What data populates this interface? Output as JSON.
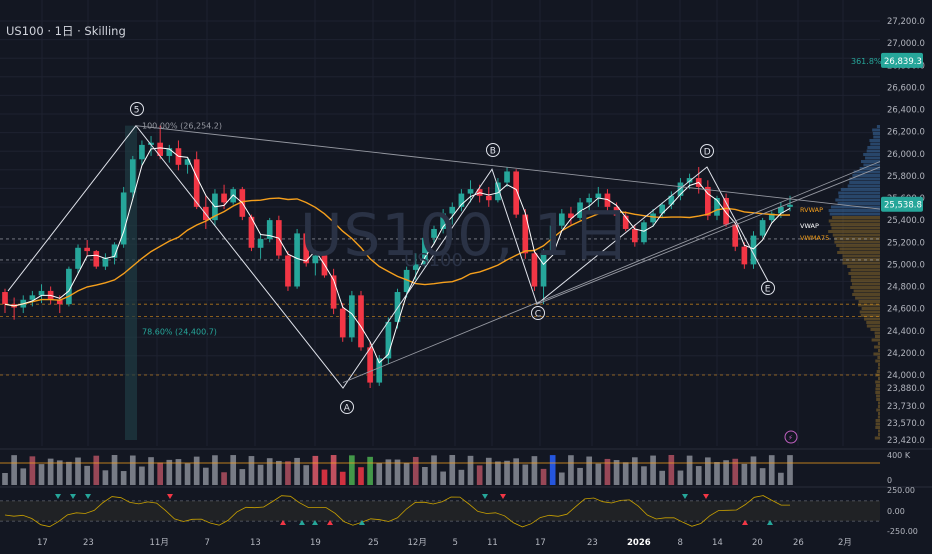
{
  "header": {
    "title": "US100 · 1日 · Skilling"
  },
  "watermark": {
    "symbol": "US100, 1日",
    "sub": "US100"
  },
  "colors": {
    "up": "#26a69a",
    "down": "#f23645",
    "bg": "#131722",
    "grid": "#1e2230",
    "orange": "#f59f1c",
    "accent": "#26a69a"
  },
  "icons": [
    "lightning-icon"
  ],
  "chart_data": [
    {
      "type": "candlestick",
      "title": "US100 · 1日 · Skilling",
      "ylim": [
        23420,
        27300
      ],
      "yticks": [
        "27,200.0",
        "27,000.0",
        "26,800.0",
        "26,600.0",
        "26,400.0",
        "26,200.0",
        "26,000.0",
        "25,800.0",
        "25,600.0",
        "25,400.0",
        "25,200.0",
        "25,000.0",
        "24,800.0",
        "24,600.0",
        "24,400.0",
        "24,200.0",
        "24,000.0",
        "23,880.0",
        "23,730.0",
        "23,570.0",
        "23,420.0"
      ],
      "xticks": [
        "17",
        "23",
        "11月",
        "7",
        "13",
        "19",
        "25",
        "12月",
        "5",
        "11",
        "17",
        "23",
        "2026",
        "8",
        "14",
        "20",
        "26",
        "2月"
      ],
      "current_price": "25,538.8",
      "fib_target": "26,839.3",
      "fib_target_label": "361.8%",
      "fib_top_label": "100.00% (26,254.2)",
      "fib_mid_label": "78.60% (24,400.7)",
      "indicator_labels": [
        "RVWAP",
        "VWAP",
        "VWMA75"
      ],
      "wave_labels": [
        "5",
        "A",
        "B",
        "C",
        "D",
        "E"
      ],
      "ohlc": [
        [
          24750,
          24780,
          24560,
          24640
        ],
        [
          24640,
          24700,
          24500,
          24610
        ],
        [
          24610,
          24720,
          24560,
          24680
        ],
        [
          24680,
          24760,
          24620,
          24720
        ],
        [
          24720,
          24820,
          24650,
          24760
        ],
        [
          24760,
          24800,
          24640,
          24680
        ],
        [
          24680,
          24720,
          24560,
          24640
        ],
        [
          24640,
          24980,
          24620,
          24960
        ],
        [
          24960,
          25180,
          24920,
          25150
        ],
        [
          25150,
          25220,
          25080,
          25120
        ],
        [
          25120,
          25130,
          24960,
          24980
        ],
        [
          24980,
          25100,
          24950,
          25060
        ],
        [
          25060,
          25200,
          25000,
          25180
        ],
        [
          25180,
          25700,
          25150,
          25650
        ],
        [
          25650,
          25980,
          25600,
          25950
        ],
        [
          25950,
          26120,
          25900,
          26080
        ],
        [
          26080,
          26160,
          25980,
          26100
        ],
        [
          26100,
          26254,
          25950,
          25980
        ],
        [
          25980,
          26080,
          25920,
          26050
        ],
        [
          26050,
          26120,
          25850,
          25900
        ],
        [
          25900,
          25960,
          25820,
          25950
        ],
        [
          25950,
          26020,
          25500,
          25520
        ],
        [
          25520,
          25620,
          25320,
          25400
        ],
        [
          25400,
          25680,
          25350,
          25640
        ],
        [
          25640,
          25720,
          25500,
          25560
        ],
        [
          25560,
          25700,
          25540,
          25680
        ],
        [
          25680,
          25700,
          25400,
          25430
        ],
        [
          25430,
          25450,
          25120,
          25150
        ],
        [
          25150,
          25280,
          25050,
          25230
        ],
        [
          25230,
          25420,
          25200,
          25400
        ],
        [
          25400,
          25440,
          25050,
          25080
        ],
        [
          25080,
          25120,
          24760,
          24800
        ],
        [
          24800,
          25320,
          24780,
          25280
        ],
        [
          25280,
          25340,
          24980,
          25010
        ],
        [
          25010,
          25120,
          24900,
          25080
        ],
        [
          25080,
          25100,
          24880,
          24900
        ],
        [
          24900,
          24960,
          24550,
          24600
        ],
        [
          24600,
          24650,
          24300,
          24340
        ],
        [
          24340,
          24760,
          24300,
          24720
        ],
        [
          24720,
          24760,
          24220,
          24250
        ],
        [
          24250,
          24300,
          23880,
          23930
        ],
        [
          23930,
          24180,
          23900,
          24150
        ],
        [
          24150,
          24520,
          24100,
          24480
        ],
        [
          24480,
          24780,
          24420,
          24750
        ],
        [
          24750,
          24980,
          24700,
          24950
        ],
        [
          24950,
          25100,
          24860,
          25000
        ],
        [
          25000,
          25280,
          24980,
          25240
        ],
        [
          25240,
          25350,
          25180,
          25320
        ],
        [
          25320,
          25500,
          25280,
          25460
        ],
        [
          25460,
          25560,
          25360,
          25520
        ],
        [
          25520,
          25680,
          25480,
          25640
        ],
        [
          25640,
          25760,
          25560,
          25680
        ],
        [
          25680,
          25720,
          25560,
          25620
        ],
        [
          25620,
          25700,
          25520,
          25580
        ],
        [
          25580,
          25780,
          25560,
          25740
        ],
        [
          25740,
          25880,
          25700,
          25840
        ],
        [
          25840,
          25860,
          25420,
          25450
        ],
        [
          25450,
          25500,
          25050,
          25100
        ],
        [
          25100,
          25120,
          24760,
          24800
        ],
        [
          24800,
          25140,
          24640,
          25100
        ],
        [
          25100,
          25380,
          25080,
          25350
        ],
        [
          25350,
          25500,
          25320,
          25460
        ],
        [
          25460,
          25520,
          25360,
          25420
        ],
        [
          25420,
          25600,
          25400,
          25560
        ],
        [
          25560,
          25640,
          25480,
          25600
        ],
        [
          25600,
          25700,
          25520,
          25640
        ],
        [
          25640,
          25680,
          25480,
          25520
        ],
        [
          25520,
          25560,
          25400,
          25440
        ],
        [
          25440,
          25480,
          25300,
          25320
        ],
        [
          25320,
          25360,
          25160,
          25200
        ],
        [
          25200,
          25400,
          25180,
          25380
        ],
        [
          25380,
          25500,
          25340,
          25460
        ],
        [
          25460,
          25560,
          25420,
          25540
        ],
        [
          25540,
          25660,
          25500,
          25620
        ],
        [
          25620,
          25780,
          25580,
          25740
        ],
        [
          25740,
          25820,
          25680,
          25780
        ],
        [
          25780,
          25880,
          25640,
          25700
        ],
        [
          25700,
          25760,
          25400,
          25440
        ],
        [
          25440,
          25620,
          25400,
          25600
        ],
        [
          25600,
          25640,
          25340,
          25360
        ],
        [
          25360,
          25380,
          25120,
          25160
        ],
        [
          25160,
          25200,
          24960,
          25000
        ],
        [
          25000,
          25300,
          24960,
          25260
        ],
        [
          25260,
          25420,
          25240,
          25400
        ],
        [
          25400,
          25480,
          25380,
          25460
        ],
        [
          25460,
          25560,
          25420,
          25520
        ],
        [
          25520,
          25620,
          25480,
          25539
        ]
      ]
    }
  ]
}
